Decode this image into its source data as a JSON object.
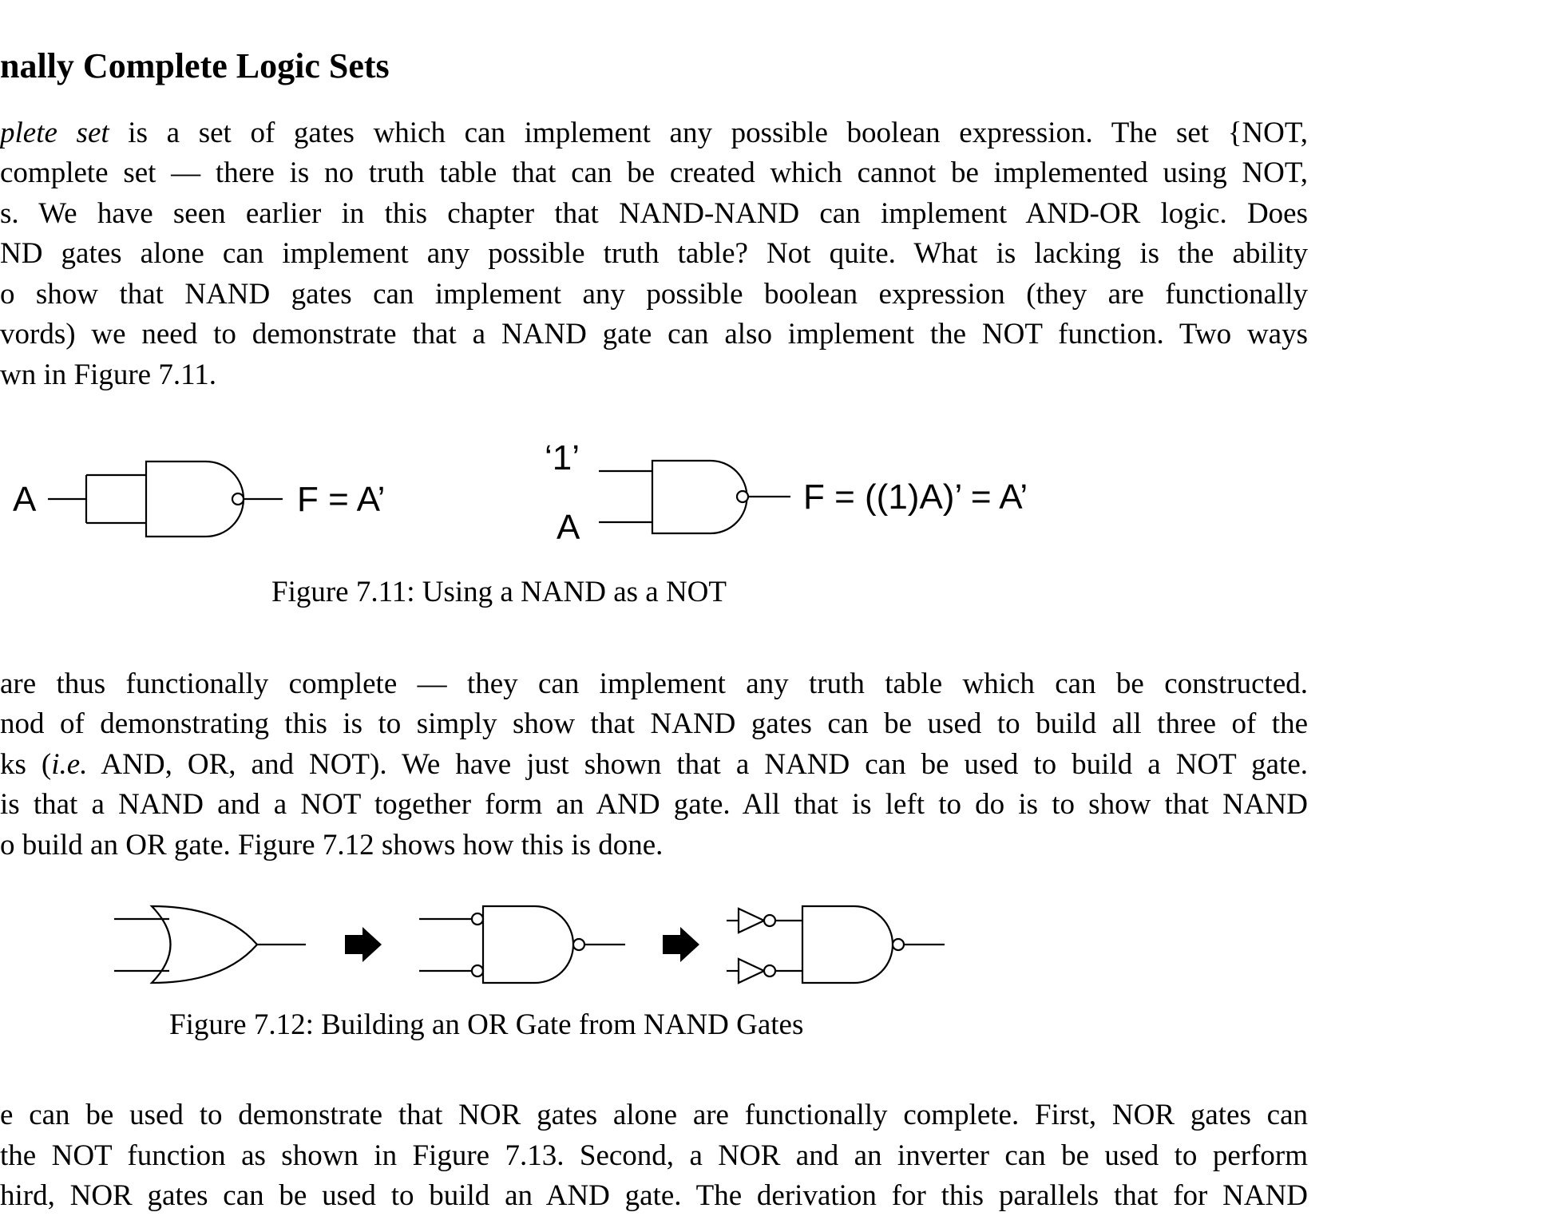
{
  "section": {
    "title": "nally Complete Logic Sets"
  },
  "paragraph1": [
    {
      "segments": [
        {
          "t": "plete set",
          "i": true
        },
        {
          "t": " is a set of gates which can implement any possible boolean expression. The set {NOT,"
        }
      ]
    },
    {
      "segments": [
        {
          "t": "complete set — there is no truth table that can be created which cannot be implemented using NOT,"
        }
      ]
    },
    {
      "segments": [
        {
          "t": "s. We have seen earlier in this chapter that NAND-NAND can implement AND-OR logic. Does"
        }
      ]
    },
    {
      "segments": [
        {
          "t": "ND gates alone can implement any possible truth table? Not quite. What is lacking is the ability"
        }
      ]
    },
    {
      "segments": [
        {
          "t": "o show that NAND gates can implement any possible boolean expression (they are functionally"
        }
      ]
    },
    {
      "segments": [
        {
          "t": "vords) we need to demonstrate that a NAND gate can also implement the NOT function. Two ways"
        }
      ]
    },
    {
      "segments": [
        {
          "t": "wn in Figure 7.11."
        }
      ]
    }
  ],
  "figure_7_11": {
    "left": {
      "input": "A",
      "output": "F = A’"
    },
    "right": {
      "input_top": "‘1’",
      "input_bottom": "A",
      "output": "F = ((1)A)’ = A’"
    },
    "caption": "Figure 7.11: Using a NAND as a NOT"
  },
  "paragraph2": [
    {
      "segments": [
        {
          "t": "are thus functionally complete — they can implement any truth table which can be constructed."
        }
      ]
    },
    {
      "segments": [
        {
          "t": "nod of demonstrating this is to simply show that NAND gates can be used to build all three of the"
        }
      ]
    },
    {
      "segments": [
        {
          "t": "ks ("
        },
        {
          "t": "i.e.",
          "i": true
        },
        {
          "t": " AND, OR, and NOT). We have just shown that a NAND can be used to build a NOT gate."
        }
      ]
    },
    {
      "segments": [
        {
          "t": "is that a NAND and a NOT together form an AND gate. All that is left to do is to show that NAND"
        }
      ]
    },
    {
      "segments": [
        {
          "t": "o build an OR gate. Figure 7.12 shows how this is done."
        }
      ]
    }
  ],
  "figure_7_12": {
    "caption": "Figure 7.12: Building an OR Gate from NAND Gates"
  },
  "paragraph3": [
    {
      "segments": [
        {
          "t": "e can be used to demonstrate that NOR gates alone are functionally complete. First, NOR gates can"
        }
      ]
    },
    {
      "segments": [
        {
          "t": "the NOT function as shown in Figure 7.13. Second, a NOR and an inverter can be used to perform"
        }
      ]
    },
    {
      "segments": [
        {
          "t": "hird, NOR gates can be used to build an AND gate. The derivation for this parallels that for NAND"
        }
      ]
    }
  ]
}
